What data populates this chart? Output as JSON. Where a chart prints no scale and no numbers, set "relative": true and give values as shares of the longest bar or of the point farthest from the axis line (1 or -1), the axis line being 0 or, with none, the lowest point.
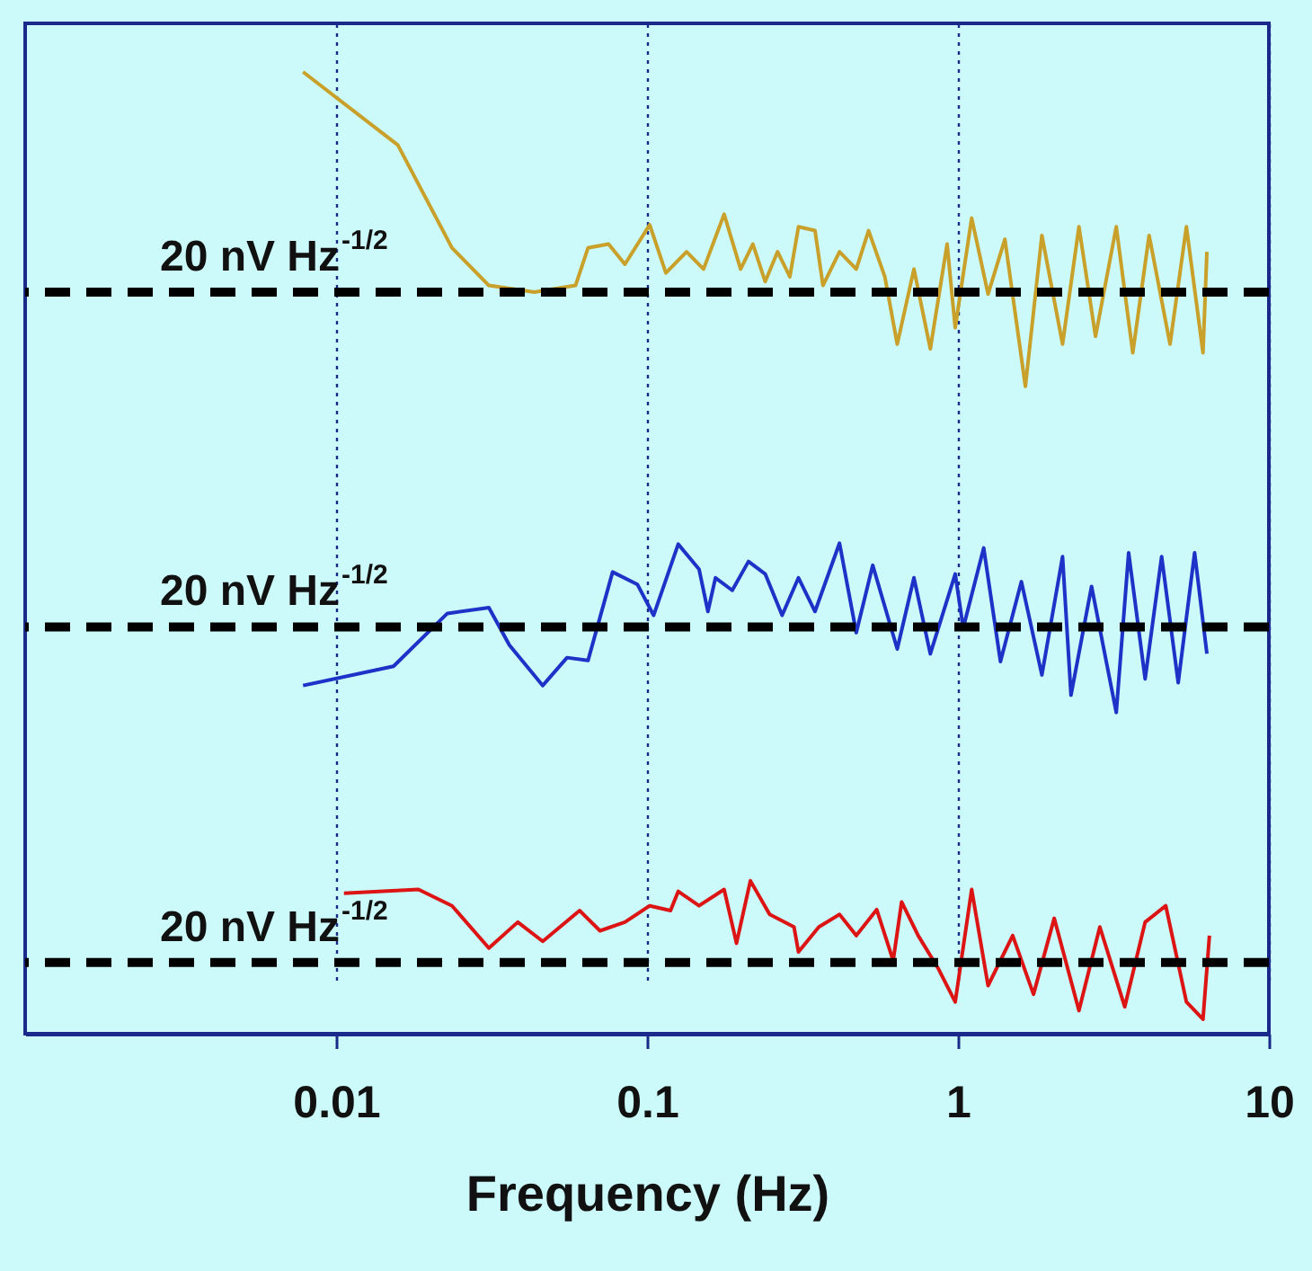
{
  "chart_data": {
    "type": "line",
    "xlabel": "Frequency  (Hz)",
    "relative": true,
    "log": "x",
    "grid": "x",
    "xlim": [
      0.001,
      10
    ],
    "xticks": [
      0.01,
      0.1,
      1,
      10
    ],
    "series": [
      {
        "color": "#c8a02a",
        "x": [
          0.00783,
          0.0158,
          0.0236,
          0.031,
          0.0434,
          0.0589,
          0.0646,
          0.0752,
          0.0849,
          0.102,
          0.115,
          0.134,
          0.152,
          0.177,
          0.2,
          0.219,
          0.24,
          0.263,
          0.288,
          0.307,
          0.347,
          0.368,
          0.416,
          0.471,
          0.516,
          0.582,
          0.638,
          0.722,
          0.815,
          0.923,
          0.98,
          1.107,
          1.25,
          1.416,
          1.648,
          1.862,
          2.17,
          2.45,
          2.77,
          3.23,
          3.65,
          4.12,
          4.81,
          5.43,
          6.14,
          6.32
        ],
        "values": [
          1.0,
          0.924,
          0.817,
          0.778,
          0.771,
          0.778,
          0.817,
          0.821,
          0.8,
          0.841,
          0.791,
          0.813,
          0.795,
          0.852,
          0.795,
          0.821,
          0.782,
          0.813,
          0.787,
          0.839,
          0.835,
          0.778,
          0.813,
          0.795,
          0.835,
          0.787,
          0.717,
          0.795,
          0.712,
          0.821,
          0.734,
          0.848,
          0.769,
          0.826,
          0.673,
          0.83,
          0.717,
          0.839,
          0.725,
          0.839,
          0.708,
          0.83,
          0.717,
          0.839,
          0.708,
          0.813
        ]
      },
      {
        "color": "#1e32c8",
        "x": [
          0.00783,
          0.0153,
          0.0228,
          0.031,
          0.0361,
          0.0462,
          0.0553,
          0.0646,
          0.0775,
          0.0932,
          0.105,
          0.126,
          0.147,
          0.157,
          0.166,
          0.188,
          0.212,
          0.24,
          0.272,
          0.307,
          0.347,
          0.416,
          0.471,
          0.532,
          0.638,
          0.722,
          0.815,
          0.98,
          1.04,
          1.21,
          1.37,
          1.6,
          1.862,
          2.17,
          2.31,
          2.69,
          3.23,
          3.54,
          4.0,
          4.52,
          5.11,
          5.77,
          6.32
        ],
        "values": [
          0.362,
          0.382,
          0.437,
          0.443,
          0.404,
          0.362,
          0.391,
          0.388,
          0.48,
          0.467,
          0.435,
          0.509,
          0.483,
          0.439,
          0.474,
          0.461,
          0.491,
          0.478,
          0.435,
          0.474,
          0.439,
          0.51,
          0.417,
          0.487,
          0.4,
          0.474,
          0.395,
          0.478,
          0.422,
          0.505,
          0.387,
          0.47,
          0.373,
          0.496,
          0.352,
          0.465,
          0.334,
          0.5,
          0.369,
          0.496,
          0.365,
          0.5,
          0.395
        ]
      },
      {
        "color": "#dc1414",
        "x": [
          0.0106,
          0.0184,
          0.0236,
          0.031,
          0.0384,
          0.0462,
          0.0607,
          0.0706,
          0.0849,
          0.102,
          0.119,
          0.126,
          0.147,
          0.177,
          0.194,
          0.215,
          0.248,
          0.297,
          0.307,
          0.357,
          0.416,
          0.471,
          0.548,
          0.619,
          0.659,
          0.745,
          0.867,
          0.98,
          1.107,
          1.25,
          1.5,
          1.75,
          2.04,
          2.45,
          2.86,
          3.44,
          4.0,
          4.66,
          5.43,
          6.14,
          6.44
        ],
        "values": [
          0.146,
          0.15,
          0.133,
          0.089,
          0.116,
          0.096,
          0.128,
          0.107,
          0.116,
          0.133,
          0.128,
          0.148,
          0.133,
          0.15,
          0.094,
          0.159,
          0.124,
          0.111,
          0.085,
          0.111,
          0.124,
          0.102,
          0.129,
          0.076,
          0.137,
          0.102,
          0.067,
          0.033,
          0.15,
          0.05,
          0.102,
          0.041,
          0.12,
          0.024,
          0.111,
          0.028,
          0.116,
          0.133,
          0.033,
          0.015,
          0.102
        ]
      }
    ],
    "ref_lines": [
      {
        "axis": "y",
        "value": 0.771,
        "label": "20 nV Hz$^{-1/2}$",
        "color": "#000000",
        "line_style": "dashed"
      },
      {
        "axis": "y",
        "value": 0.423,
        "label": "20 nV Hz$^{-1/2}$",
        "color": "#000000",
        "line_style": "dashed"
      },
      {
        "axis": "y",
        "value": 0.074,
        "label": "20 nV Hz$^{-1/2}$",
        "color": "#000000",
        "line_style": "dashed"
      }
    ]
  }
}
